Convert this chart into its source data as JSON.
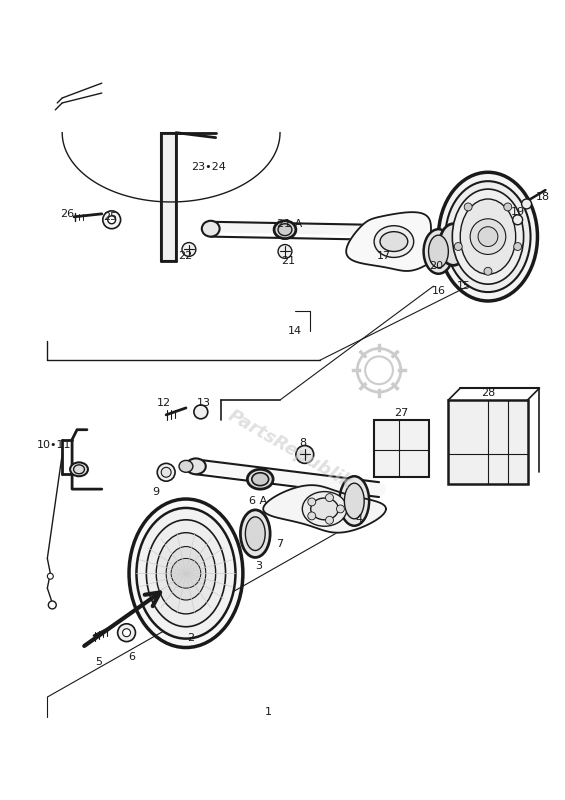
{
  "background_color": "#ffffff",
  "line_color": "#1a1a1a",
  "watermark_color": "#cccccc",
  "watermark_text": "PartsRepublik",
  "fig_width": 5.65,
  "fig_height": 8.0,
  "dpi": 100
}
